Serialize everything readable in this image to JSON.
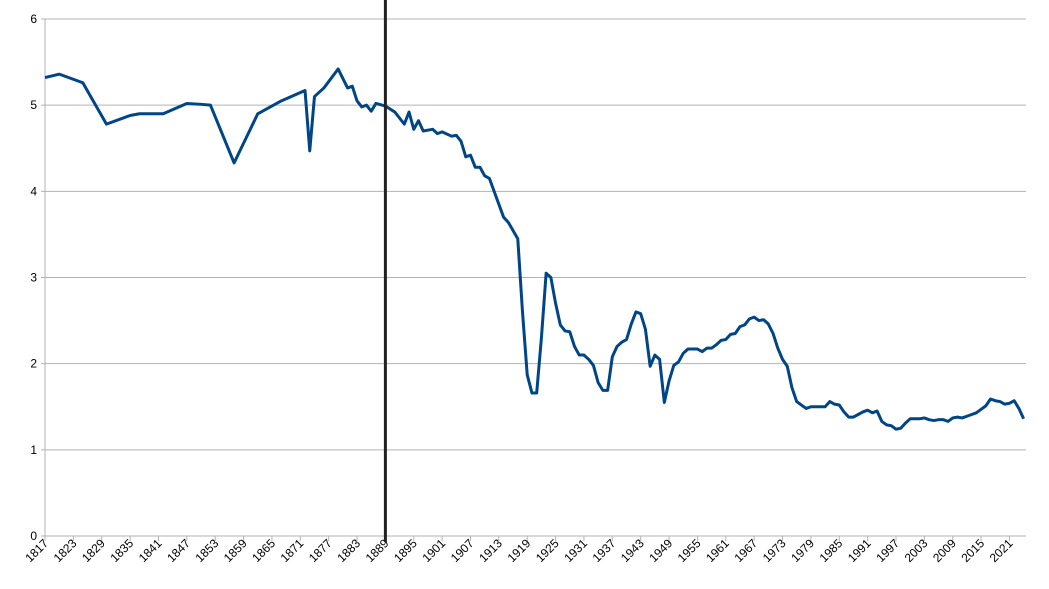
{
  "chart_data": {
    "type": "line",
    "x": [
      1817,
      1820,
      1825,
      1830,
      1835,
      1837,
      1842,
      1847,
      1850,
      1852,
      1857,
      1862,
      1867,
      1872,
      1873,
      1874,
      1876,
      1879,
      1881,
      1882,
      1883,
      1884,
      1885,
      1886,
      1887,
      1889,
      1891,
      1893,
      1894,
      1895,
      1896,
      1897,
      1899,
      1900,
      1901,
      1903,
      1904,
      1905,
      1906,
      1907,
      1908,
      1909,
      1910,
      1911,
      1912,
      1914,
      1915,
      1917,
      1918,
      1919,
      1920,
      1921,
      1922,
      1923,
      1924,
      1925,
      1926,
      1927,
      1928,
      1929,
      1930,
      1931,
      1932,
      1933,
      1934,
      1935,
      1936,
      1937,
      1938,
      1939,
      1940,
      1941,
      1942,
      1943,
      1944,
      1945,
      1946,
      1947,
      1948,
      1949,
      1950,
      1951,
      1952,
      1953,
      1954,
      1955,
      1956,
      1957,
      1958,
      1959,
      1960,
      1961,
      1962,
      1963,
      1964,
      1965,
      1966,
      1967,
      1968,
      1969,
      1970,
      1971,
      1972,
      1973,
      1974,
      1975,
      1976,
      1977,
      1978,
      1979,
      1980,
      1981,
      1982,
      1983,
      1984,
      1985,
      1986,
      1987,
      1988,
      1989,
      1990,
      1991,
      1992,
      1993,
      1994,
      1995,
      1996,
      1997,
      1998,
      1999,
      2000,
      2001,
      2002,
      2003,
      2004,
      2005,
      2006,
      2007,
      2008,
      2009,
      2010,
      2011,
      2012,
      2013,
      2014,
      2015,
      2016,
      2017,
      2018,
      2019,
      2020,
      2021,
      2022,
      2023,
      2024
    ],
    "series": [
      {
        "color": "#004586",
        "values": [
          5.32,
          5.36,
          5.26,
          4.78,
          4.88,
          4.9,
          4.9,
          5.02,
          5.01,
          5.0,
          4.33,
          4.9,
          5.05,
          5.17,
          4.47,
          5.1,
          5.2,
          5.42,
          5.2,
          5.22,
          5.05,
          4.98,
          5.0,
          4.93,
          5.02,
          4.99,
          4.92,
          4.78,
          4.92,
          4.72,
          4.82,
          4.7,
          4.72,
          4.67,
          4.69,
          4.64,
          4.65,
          4.58,
          4.4,
          4.42,
          4.28,
          4.28,
          4.18,
          4.15,
          4.0,
          3.7,
          3.64,
          3.45,
          2.6,
          1.87,
          1.66,
          1.66,
          2.3,
          3.05,
          3.0,
          2.7,
          2.45,
          2.38,
          2.37,
          2.2,
          2.1,
          2.1,
          2.05,
          1.98,
          1.78,
          1.69,
          1.69,
          2.08,
          2.2,
          2.25,
          2.28,
          2.46,
          2.6,
          2.58,
          2.4,
          1.97,
          2.1,
          2.05,
          1.55,
          1.8,
          1.98,
          2.02,
          2.12,
          2.17,
          2.17,
          2.17,
          2.14,
          2.18,
          2.18,
          2.22,
          2.27,
          2.28,
          2.34,
          2.35,
          2.43,
          2.45,
          2.52,
          2.54,
          2.5,
          2.51,
          2.46,
          2.35,
          2.18,
          2.05,
          1.97,
          1.72,
          1.56,
          1.52,
          1.48,
          1.5,
          1.5,
          1.5,
          1.5,
          1.56,
          1.53,
          1.52,
          1.44,
          1.38,
          1.38,
          1.41,
          1.44,
          1.46,
          1.43,
          1.45,
          1.33,
          1.29,
          1.28,
          1.24,
          1.25,
          1.31,
          1.36,
          1.36,
          1.36,
          1.37,
          1.35,
          1.34,
          1.35,
          1.35,
          1.33,
          1.37,
          1.38,
          1.37,
          1.39,
          1.41,
          1.43,
          1.47,
          1.51,
          1.59,
          1.57,
          1.56,
          1.53,
          1.54,
          1.57,
          1.48,
          1.36
        ]
      }
    ],
    "xlim": [
      1817,
      2024.5
    ],
    "xticks": [
      1817,
      1823,
      1829,
      1835,
      1841,
      1847,
      1853,
      1859,
      1865,
      1871,
      1877,
      1883,
      1889,
      1895,
      1901,
      1907,
      1913,
      1919,
      1925,
      1931,
      1937,
      1943,
      1949,
      1955,
      1961,
      1967,
      1973,
      1979,
      1985,
      1991,
      1997,
      2003,
      2009,
      2015,
      2021
    ],
    "ylim": [
      0,
      6
    ],
    "yticks": [
      0,
      1,
      2,
      3,
      4,
      5,
      6
    ],
    "grid": true,
    "reference_line_x": 1889
  }
}
